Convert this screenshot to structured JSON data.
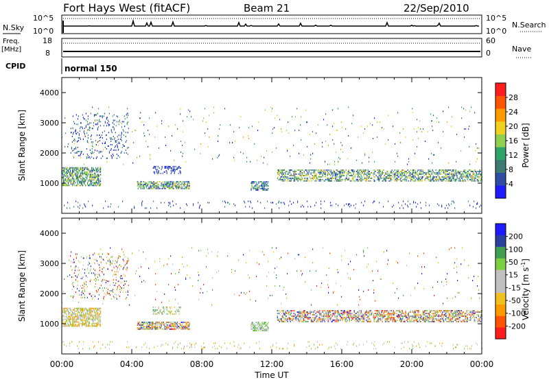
{
  "header": {
    "station": "Fort Hays West (fitACF)",
    "beam": "Beam 21",
    "date": "22/Sep/2010"
  },
  "top_panel": {
    "left_label": "N.Sky",
    "right_label": "N.Search",
    "left_ticks": [
      "10^5",
      "10^0"
    ],
    "right_ticks": [
      "10^5",
      "10^0"
    ]
  },
  "freq_panel": {
    "left_label_line1": "Freq.",
    "left_label_line2": "[MHz]",
    "left_ticks": [
      "18",
      "8"
    ],
    "right_label": "Nave",
    "right_ticks": [
      "60",
      "0"
    ],
    "cpid_label": "CPID",
    "mode_text": "normal 150"
  },
  "colors": {
    "power": [
      "#1c1cff",
      "#2e4ea6",
      "#3c7a72",
      "#2fa36a",
      "#8fd050",
      "#f0d020",
      "#ff9a00",
      "#ff5500",
      "#ff1e1e"
    ],
    "velocity": [
      "#ff1e1e",
      "#ff5500",
      "#ff9a00",
      "#f0c020",
      "#c0c0c0",
      "#c0c0c0",
      "#7ad040",
      "#40a050",
      "#2a40a0",
      "#1c1cff"
    ]
  },
  "chart_data": [
    {
      "type": "heatmap",
      "title": "Power",
      "xlabel": "Time UT",
      "ylabel": "Slant Range [km]",
      "x_ticks": [
        "00:00",
        "04:00",
        "08:00",
        "12:00",
        "16:00",
        "20:00",
        "00:00"
      ],
      "x_range_hours": [
        0,
        24
      ],
      "ylim": [
        0,
        4500
      ],
      "y_ticks": [
        1000,
        2000,
        3000,
        4000
      ],
      "colorbar": {
        "label": "Power [dB]",
        "range": [
          0,
          32
        ],
        "tick_values": [
          4,
          8,
          12,
          16,
          20,
          24,
          28
        ],
        "tick_labels": [
          "4",
          "8",
          "12",
          "16",
          "20",
          "24",
          "28"
        ]
      }
    },
    {
      "type": "heatmap",
      "title": "Velocity",
      "xlabel": "Time UT",
      "ylabel": "Slant Range [km]",
      "x_ticks": [
        "00:00",
        "04:00",
        "08:00",
        "12:00",
        "16:00",
        "20:00",
        "00:00"
      ],
      "x_range_hours": [
        0,
        24
      ],
      "ylim": [
        0,
        4500
      ],
      "y_ticks": [
        1000,
        2000,
        3000,
        4000
      ],
      "colorbar": {
        "label": "Velocity [m s",
        "label_sup": "-1",
        "label_tail": "]",
        "tick_labels": [
          "-200",
          "-100",
          "-50",
          "-15",
          "15",
          "50",
          "100",
          "200"
        ]
      }
    }
  ],
  "scatter_regions": [
    {
      "t0": 0.0,
      "t1": 2.2,
      "r0": 900,
      "r1": 1500,
      "power": [
        4,
        20
      ],
      "vel": [
        2,
        6
      ],
      "density": 0.55
    },
    {
      "t0": 0.5,
      "t1": 3.8,
      "r0": 1800,
      "r1": 3300,
      "power": [
        0,
        10
      ],
      "vel": [
        0,
        9
      ],
      "density": 0.1
    },
    {
      "t0": 4.3,
      "t1": 7.3,
      "r0": 800,
      "r1": 1050,
      "power": [
        2,
        22
      ],
      "vel": [
        0,
        9
      ],
      "density": 0.55
    },
    {
      "t0": 5.2,
      "t1": 6.8,
      "r0": 1300,
      "r1": 1550,
      "power": [
        1,
        6
      ],
      "vel": [
        3,
        7
      ],
      "density": 0.3
    },
    {
      "t0": 10.8,
      "t1": 11.8,
      "r0": 750,
      "r1": 1050,
      "power": [
        3,
        14
      ],
      "vel": [
        4,
        7
      ],
      "density": 0.55
    },
    {
      "t0": 12.3,
      "t1": 24.0,
      "r0": 1050,
      "r1": 1450,
      "power": [
        2,
        22
      ],
      "vel": [
        0,
        9
      ],
      "density": 0.45
    },
    {
      "t0": 0.0,
      "t1": 24.0,
      "r0": 150,
      "r1": 380,
      "power": [
        0,
        8
      ],
      "vel": [
        2,
        6
      ],
      "density": 0.05
    },
    {
      "t0": 0.0,
      "t1": 24.0,
      "r0": 1600,
      "r1": 3500,
      "power": [
        0,
        24
      ],
      "vel": [
        0,
        9
      ],
      "density": 0.012
    }
  ]
}
